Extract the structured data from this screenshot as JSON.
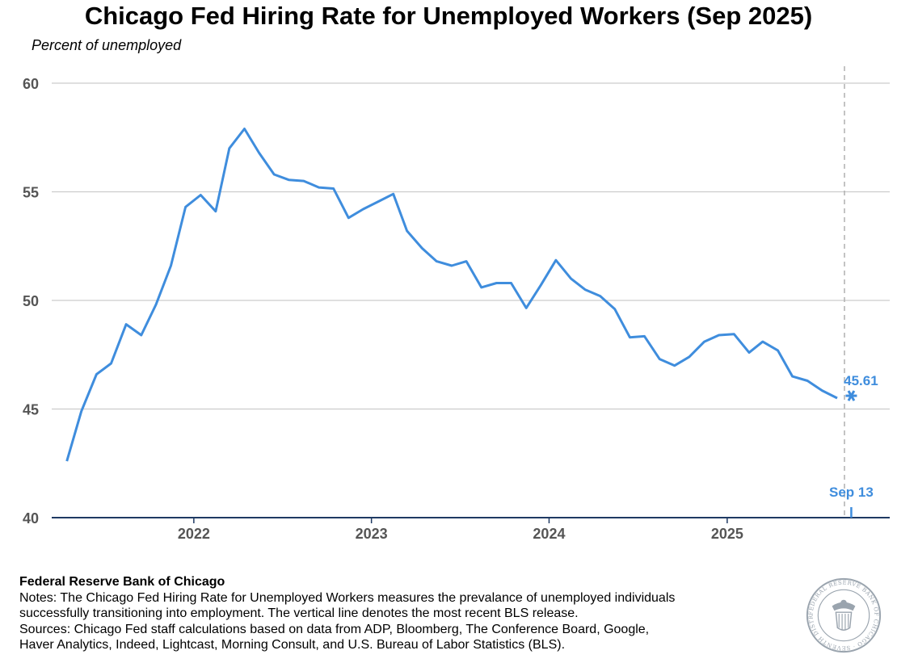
{
  "title": "Chicago Fed Hiring Rate for Unemployed Workers (Sep 2025)",
  "subtitle": "Percent of unemployed",
  "footer": {
    "source_org": "Federal Reserve Bank of Chicago",
    "notes": "Notes: The Chicago Fed Hiring Rate for Unemployed Workers measures the prevalance of unemployed individuals\nsuccessfully transitioning into employment. The vertical line denotes the most recent BLS release.",
    "sources": "Sources: Chicago Fed staff calculations based on data from ADP, Bloomberg, The Conference Board, Google,\nHaver Analytics, Indeed, Lightcast, Morning Consult, and U.S. Bureau of Labor Statistics (BLS).",
    "seal_text": "FEDERAL RESERVE BANK OF CHICAGO · SEVENTH DISTRICT"
  },
  "colors": {
    "line": "#3f8ddd",
    "grid": "#cccccc",
    "axis": "#1f3a63",
    "tick_text": "#555555",
    "vline": "#b0b0b0"
  },
  "chart_data": {
    "type": "line",
    "title": "Chicago Fed Hiring Rate for Unemployed Workers (Sep 2025)",
    "ylabel": "Percent of unemployed",
    "ylim": [
      40,
      60
    ],
    "yticks": [
      40,
      45,
      50,
      55,
      60
    ],
    "xlim": [
      "2021-03-15",
      "2025-12-01"
    ],
    "xticks": [
      {
        "label": "2022",
        "date": "2022-01-01"
      },
      {
        "label": "2023",
        "date": "2023-01-01"
      },
      {
        "label": "2024",
        "date": "2024-01-01"
      },
      {
        "label": "2025",
        "date": "2025-01-01"
      }
    ],
    "grid": true,
    "series": [
      {
        "x": [
          "2021-04",
          "2021-05",
          "2021-06",
          "2021-07",
          "2021-08",
          "2021-09",
          "2021-10",
          "2021-11",
          "2021-12",
          "2022-01",
          "2022-02",
          "2022-03",
          "2022-04",
          "2022-05",
          "2022-06",
          "2022-07",
          "2022-08",
          "2022-09",
          "2022-10",
          "2022-11",
          "2022-12",
          "2023-01",
          "2023-02",
          "2023-03",
          "2023-04",
          "2023-05",
          "2023-06",
          "2023-07",
          "2023-08",
          "2023-09",
          "2023-10",
          "2023-11",
          "2023-12",
          "2024-01",
          "2024-02",
          "2024-03",
          "2024-04",
          "2024-05",
          "2024-06",
          "2024-07",
          "2024-08",
          "2024-09",
          "2024-10",
          "2024-11",
          "2024-12",
          "2025-01",
          "2025-02",
          "2025-03",
          "2025-04",
          "2025-05",
          "2025-06",
          "2025-07",
          "2025-08"
        ],
        "values": [
          42.6,
          44.9,
          46.6,
          47.1,
          48.9,
          48.4,
          49.8,
          51.6,
          54.3,
          54.85,
          54.1,
          57.0,
          57.9,
          56.8,
          55.8,
          55.55,
          55.5,
          55.2,
          55.15,
          53.8,
          54.2,
          54.55,
          54.9,
          53.2,
          52.4,
          51.8,
          51.6,
          51.8,
          50.6,
          50.8,
          50.8,
          49.65,
          50.7,
          51.85,
          51.0,
          50.5,
          50.2,
          49.6,
          48.3,
          48.35,
          47.3,
          47.0,
          47.4,
          48.1,
          48.4,
          48.45,
          47.6,
          48.1,
          47.7,
          46.5,
          46.3,
          45.85,
          45.5
        ]
      }
    ],
    "latest_estimate": {
      "date": "2025-09-13",
      "value": 45.61,
      "label": "45.61"
    },
    "vline": {
      "date": "2025-08-30"
    },
    "release_marker": {
      "date": "2025-09-13",
      "label": "Sep 13"
    }
  }
}
